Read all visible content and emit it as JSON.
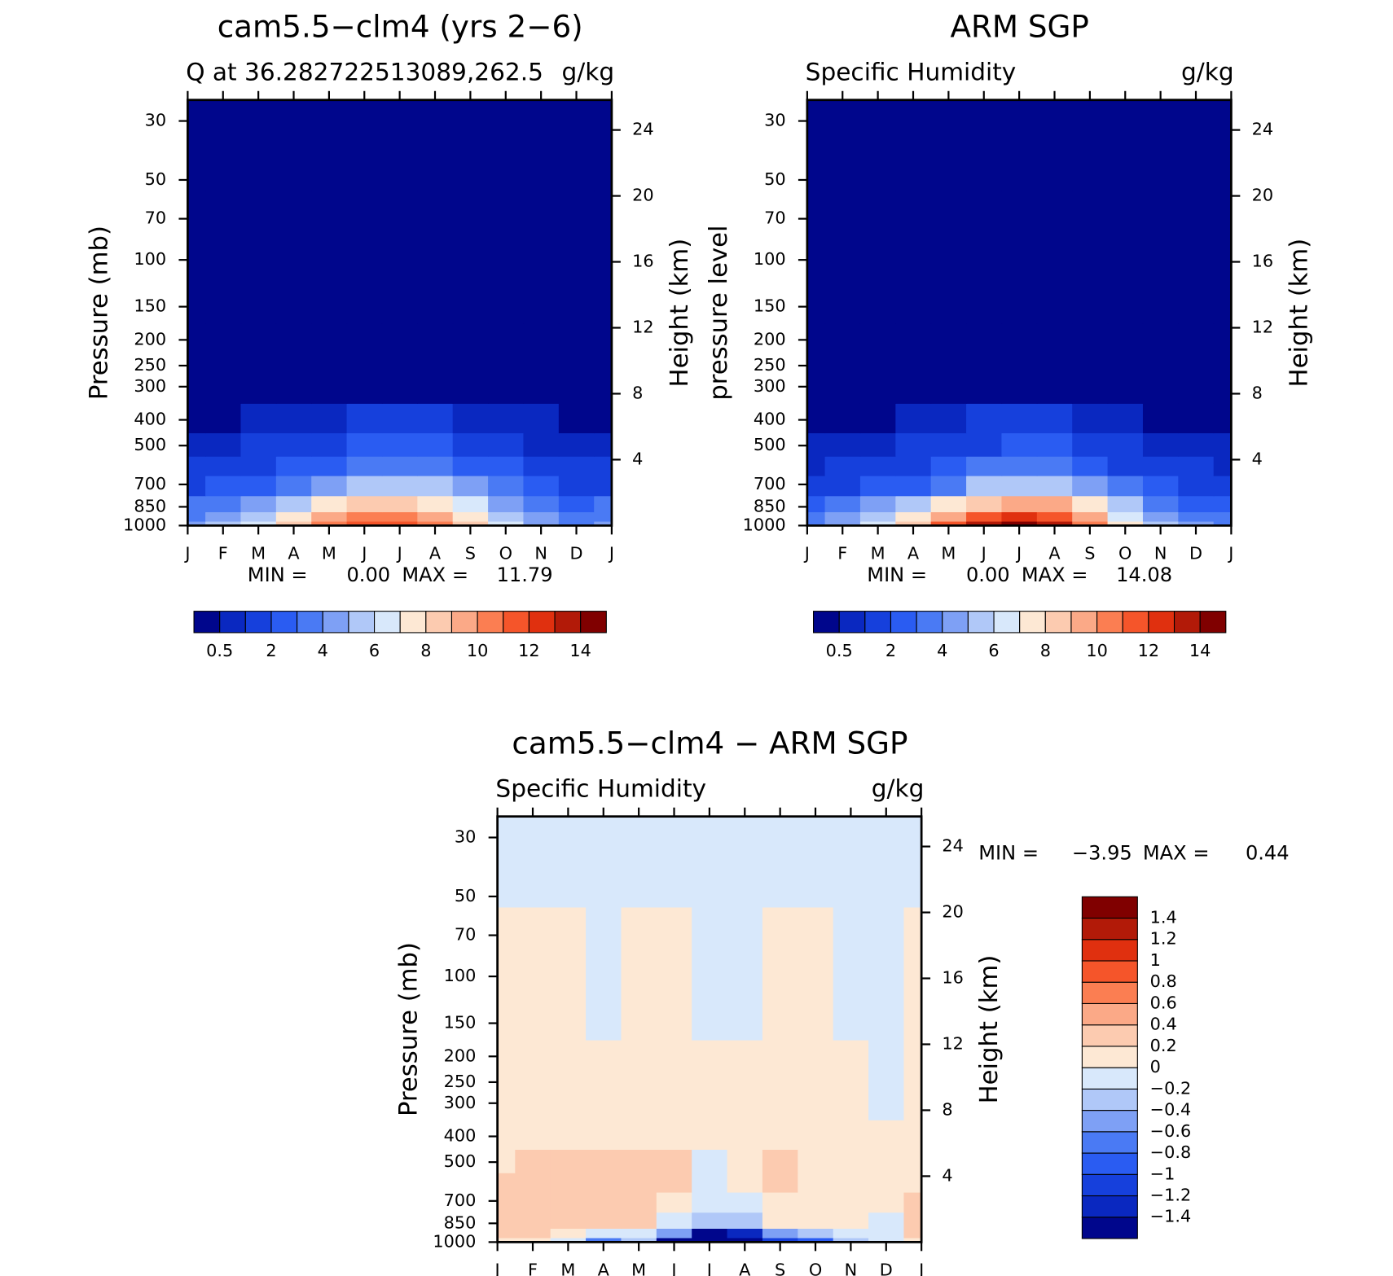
{
  "chart_data": [
    {
      "type": "contour",
      "title": "cam5.5−clm4 (yrs 2−6)",
      "subtitle": "Q at 36.282722513089,262.5",
      "units": "g/kg",
      "ylabel": "Pressure (mb)",
      "y2label": "Height (km)",
      "categories": [
        "J",
        "F",
        "M",
        "A",
        "M",
        "J",
        "J",
        "A",
        "S",
        "O",
        "N",
        "D",
        "J"
      ],
      "y": [
        1000,
        925,
        850,
        700,
        600,
        500,
        400,
        300,
        100,
        30
      ],
      "z": [
        [
          4,
          5,
          6,
          8,
          10,
          11.5,
          11,
          10,
          8,
          6,
          4.5,
          3.8,
          4
        ],
        [
          3.5,
          4.5,
          5.5,
          7,
          9,
          10.5,
          10.5,
          9.5,
          7.5,
          5.5,
          4,
          3.3,
          3.5
        ],
        [
          3,
          3.5,
          4.5,
          5.5,
          7,
          8,
          8,
          7.5,
          6,
          4.5,
          3.5,
          2.8,
          3
        ],
        [
          1.5,
          2,
          2.5,
          3,
          4,
          5,
          5.5,
          5,
          4,
          3,
          2,
          1.7,
          1.5
        ],
        [
          1,
          1.3,
          1.7,
          2,
          2.6,
          3.3,
          3.6,
          3.4,
          2.7,
          2,
          1.4,
          1.1,
          1
        ],
        [
          0.6,
          0.8,
          1,
          1.2,
          1.6,
          2.1,
          2.3,
          2.2,
          1.8,
          1.3,
          0.9,
          0.7,
          0.6
        ],
        [
          0.3,
          0.4,
          0.5,
          0.6,
          0.8,
          1.1,
          1.2,
          1.2,
          0.9,
          0.7,
          0.5,
          0.4,
          0.3
        ],
        [
          0.1,
          0.1,
          0.15,
          0.2,
          0.3,
          0.4,
          0.45,
          0.45,
          0.35,
          0.25,
          0.15,
          0.1,
          0.1
        ],
        [
          0.01,
          0.01,
          0.01,
          0.01,
          0.01,
          0.01,
          0.01,
          0.01,
          0.01,
          0.01,
          0.01,
          0.01,
          0.01
        ],
        [
          0.003,
          0.003,
          0.003,
          0.003,
          0.003,
          0.003,
          0.003,
          0.003,
          0.003,
          0.003,
          0.003,
          0.003,
          0.003
        ]
      ],
      "ylim": [
        1000,
        25
      ],
      "yticks": [
        30,
        50,
        70,
        100,
        150,
        200,
        250,
        300,
        400,
        500,
        700,
        850,
        1000
      ],
      "y2ticks": [
        4,
        8,
        12,
        16,
        20,
        24
      ],
      "min_label": "MIN =",
      "min": {
        "value": 0,
        "label": "0.00"
      },
      "max_label": "MAX =",
      "max": 11.79,
      "levels": [
        0.5,
        1,
        2,
        3,
        4,
        5,
        6,
        7,
        8,
        9,
        10,
        11,
        12,
        13,
        14
      ],
      "colorbar_ticks": [
        0.5,
        2,
        4,
        6,
        8,
        10,
        12,
        14
      ],
      "colorbar": "horizontal",
      "colors": [
        "#00068c",
        "#0a28c0",
        "#1640dc",
        "#2a5cf2",
        "#4a7af4",
        "#7ea0f5",
        "#b0c8f8",
        "#d8e8fb",
        "#fde8d4",
        "#fccbb0",
        "#fba987",
        "#fb7e52",
        "#f5552a",
        "#e0300f",
        "#b21a08",
        "#800000"
      ]
    },
    {
      "type": "contour",
      "title": "ARM SGP",
      "subtitle": "Specific Humidity",
      "units": "g/kg",
      "ylabel": "pressure level",
      "y2label": "Height (km)",
      "categories": [
        "J",
        "F",
        "M",
        "A",
        "M",
        "J",
        "J",
        "A",
        "S",
        "O",
        "N",
        "D",
        "J"
      ],
      "y": [
        1000,
        925,
        850,
        700,
        600,
        500,
        400,
        300,
        100,
        30
      ],
      "z": [
        [
          3.5,
          4.5,
          6,
          8.5,
          11,
          13,
          14,
          13,
          10.5,
          7.5,
          5,
          4,
          3.5
        ],
        [
          3,
          4,
          5.5,
          7.5,
          9.5,
          11.5,
          12.5,
          11.5,
          9,
          6.5,
          4.5,
          3.5,
          3
        ],
        [
          2.5,
          3,
          4,
          5.5,
          7,
          8.5,
          9.5,
          9,
          7,
          5,
          3.5,
          2.7,
          2.5
        ],
        [
          1.5,
          1.8,
          2.2,
          2.8,
          3.8,
          5,
          5.5,
          5.2,
          4,
          3,
          2,
          1.6,
          1.5
        ],
        [
          0.9,
          1.1,
          1.4,
          1.8,
          2.4,
          3.2,
          3.6,
          3.4,
          2.6,
          1.9,
          1.3,
          1,
          0.9
        ],
        [
          0.5,
          0.6,
          0.8,
          1,
          1.4,
          1.9,
          2.2,
          2.1,
          1.6,
          1.1,
          0.8,
          0.6,
          0.5
        ],
        [
          0.25,
          0.3,
          0.4,
          0.5,
          0.7,
          1,
          1.1,
          1.1,
          0.8,
          0.6,
          0.4,
          0.3,
          0.25
        ],
        [
          0.08,
          0.1,
          0.12,
          0.15,
          0.25,
          0.35,
          0.4,
          0.4,
          0.3,
          0.2,
          0.12,
          0.1,
          0.08
        ],
        [
          0.01,
          0.01,
          0.01,
          0.01,
          0.01,
          0.01,
          0.01,
          0.01,
          0.01,
          0.01,
          0.01,
          0.01,
          0.01
        ],
        [
          0.003,
          0.003,
          0.003,
          0.003,
          0.003,
          0.003,
          0.003,
          0.003,
          0.003,
          0.003,
          0.003,
          0.003,
          0.003
        ]
      ],
      "ylim": [
        1000,
        25
      ],
      "yticks": [
        30,
        50,
        70,
        100,
        150,
        200,
        250,
        300,
        400,
        500,
        700,
        850,
        1000
      ],
      "y2ticks": [
        4,
        8,
        12,
        16,
        20,
        24
      ],
      "min_label": "MIN =",
      "min": {
        "value": 0,
        "label": "0.00"
      },
      "max_label": "MAX =",
      "max": 14.08,
      "levels": [
        0.5,
        1,
        2,
        3,
        4,
        5,
        6,
        7,
        8,
        9,
        10,
        11,
        12,
        13,
        14
      ],
      "colorbar_ticks": [
        0.5,
        2,
        4,
        6,
        8,
        10,
        12,
        14
      ],
      "colorbar": "horizontal",
      "colors": [
        "#00068c",
        "#0a28c0",
        "#1640dc",
        "#2a5cf2",
        "#4a7af4",
        "#7ea0f5",
        "#b0c8f8",
        "#d8e8fb",
        "#fde8d4",
        "#fccbb0",
        "#fba987",
        "#fb7e52",
        "#f5552a",
        "#e0300f",
        "#b21a08",
        "#800000"
      ]
    },
    {
      "type": "contour",
      "title": "cam5.5−clm4 − ARM SGP",
      "subtitle": "Specific Humidity",
      "units": "g/kg",
      "ylabel": "Pressure (mb)",
      "y2label": "Height (km)",
      "categories": [
        "J",
        "F",
        "M",
        "A",
        "M",
        "J",
        "J",
        "A",
        "S",
        "O",
        "N",
        "D",
        "J"
      ],
      "y": [
        1000,
        925,
        850,
        700,
        600,
        500,
        400,
        300,
        100,
        30
      ],
      "z": [
        [
          0.1,
          0,
          -0.2,
          -0.8,
          -0.3,
          -1.5,
          -3.9,
          -3.5,
          -1.2,
          -1,
          -0.3,
          -0.2,
          0.1
        ],
        [
          0.3,
          0.2,
          0.1,
          -0.2,
          -0.1,
          -0.6,
          -1.5,
          -1.4,
          -0.6,
          -0.4,
          -0.1,
          -0.1,
          0.3
        ],
        [
          0.3,
          0.3,
          0.3,
          0.3,
          0.2,
          -0.1,
          -0.3,
          -0.3,
          0.1,
          0.1,
          0.1,
          -0.1,
          0.3
        ],
        [
          0.3,
          0.3,
          0.3,
          0.3,
          0.25,
          0.1,
          -0.1,
          -0.1,
          0.15,
          0.1,
          0.1,
          0.1,
          0.2
        ],
        [
          0.25,
          0.3,
          0.3,
          0.3,
          0.3,
          0.25,
          -0.1,
          0.1,
          0.3,
          0.1,
          0.1,
          0.1,
          0.1
        ],
        [
          0.1,
          0.2,
          0.25,
          0.25,
          0.2,
          0.25,
          -0.05,
          0.05,
          0.2,
          0.1,
          0.1,
          0.1,
          0.1
        ],
        [
          0.1,
          0.1,
          0.1,
          0.1,
          0.1,
          0.1,
          0.05,
          0.05,
          0.1,
          0.1,
          0.1,
          0.1,
          0.1
        ],
        [
          0.05,
          0.05,
          0.05,
          0.05,
          0.05,
          0.05,
          0.02,
          0.01,
          0.05,
          0.05,
          0.05,
          -0.01,
          0.05
        ],
        [
          0.01,
          0.01,
          0.01,
          -0.01,
          0.01,
          0.01,
          -0.01,
          -0.01,
          0.01,
          0.01,
          -0.01,
          -0.01,
          0.01
        ],
        [
          -0.01,
          -0.01,
          -0.01,
          -0.01,
          -0.01,
          -0.01,
          -0.01,
          -0.01,
          -0.01,
          -0.01,
          -0.01,
          -0.01,
          -0.01
        ]
      ],
      "ylim": [
        1000,
        25
      ],
      "yticks": [
        30,
        50,
        70,
        100,
        150,
        200,
        250,
        300,
        400,
        500,
        700,
        850,
        1000
      ],
      "y2ticks": [
        4,
        8,
        12,
        16,
        20,
        24
      ],
      "min_label": "MIN =",
      "min": {
        "value": -3.95,
        "label": "−3.95"
      },
      "max_label": "MAX =",
      "max": 0.44,
      "levels": [
        {
          "value": -1.4,
          "label": "−1.4"
        },
        {
          "value": -1.2,
          "label": "−1.2"
        },
        {
          "value": -1,
          "label": "−1"
        },
        {
          "value": -0.8,
          "label": "−0.8"
        },
        {
          "value": -0.6,
          "label": "−0.6"
        },
        {
          "value": -0.4,
          "label": "−0.4"
        },
        {
          "value": -0.2,
          "label": "−0.2"
        },
        0,
        0.2,
        0.4,
        0.6,
        0.8,
        1,
        1.2,
        1.4
      ],
      "colorbar_ticks": [
        {
          "value": -1.4,
          "label": "−1.4"
        },
        {
          "value": -1.2,
          "label": "−1.2"
        },
        {
          "value": -1,
          "label": "−1"
        },
        {
          "value": -0.8,
          "label": "−0.8"
        },
        {
          "value": -0.6,
          "label": "−0.6"
        },
        {
          "value": -0.4,
          "label": "−0.4"
        },
        {
          "value": -0.2,
          "label": "−0.2"
        },
        0,
        0.2,
        0.4,
        0.6,
        0.8,
        1,
        1.2,
        1.4
      ],
      "colorbar": "vertical",
      "colors": [
        "#00068c",
        "#0a28c0",
        "#1640dc",
        "#2a5cf2",
        "#4a7af4",
        "#7ea0f5",
        "#b0c8f8",
        "#d8e8fb",
        "#fde8d4",
        "#fccbb0",
        "#fba987",
        "#fb7e52",
        "#f5552a",
        "#e0300f",
        "#b21a08",
        "#800000"
      ]
    }
  ]
}
